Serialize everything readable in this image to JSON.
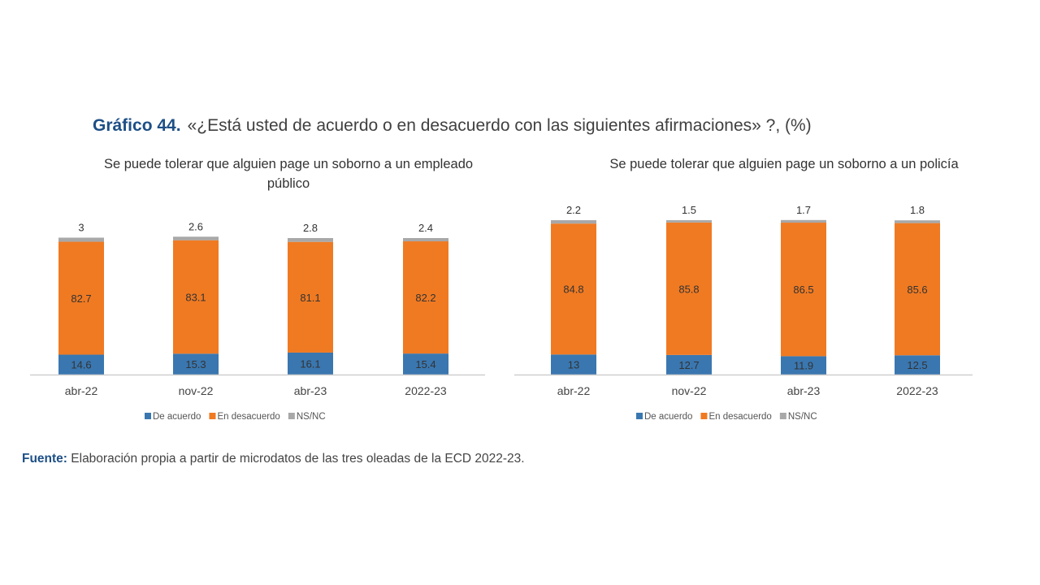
{
  "title": {
    "number": "Gráfico 44.",
    "text": "«¿Está usted de acuerdo o en desacuerdo con las siguientes afirmaciones» ?, (%)"
  },
  "source": {
    "label": "Fuente:",
    "text": "Elaboración propia a partir de microdatos de las tres oleadas de la ECD 2022-23."
  },
  "colors": {
    "de_acuerdo": "#3a77b0",
    "en_desacuerdo": "#f07a22",
    "nsnc": "#a8a8a8"
  },
  "chart_data": [
    {
      "type": "bar",
      "stacked": true,
      "title": "Se puede tolerar que alguien page un soborno a un empleado público",
      "categories": [
        "abr-22",
        "nov-22",
        "abr-23",
        "2022-23"
      ],
      "series": [
        {
          "name": "De acuerdo",
          "values": [
            14.6,
            15.3,
            16.1,
            15.4
          ],
          "labels": [
            "14.6",
            "15.3",
            "16.1",
            "15.4"
          ]
        },
        {
          "name": "En desacuerdo",
          "values": [
            82.7,
            83.1,
            81.1,
            82.2
          ],
          "labels": [
            "82.7",
            "83.1",
            "81.1",
            "82.2"
          ]
        },
        {
          "name": "NS/NC",
          "values": [
            3,
            2.6,
            2.8,
            2.4
          ],
          "labels": [
            "3",
            "2.6",
            "2.8",
            "2.4"
          ]
        }
      ],
      "ylim": [
        0,
        100
      ],
      "legend": "bottom"
    },
    {
      "type": "bar",
      "stacked": true,
      "title": "Se puede tolerar que alguien page un soborno a un policía",
      "categories": [
        "abr-22",
        "nov-22",
        "abr-23",
        "2022-23"
      ],
      "series": [
        {
          "name": "De acuerdo",
          "values": [
            13,
            12.7,
            11.9,
            12.5
          ],
          "labels": [
            "13",
            "12.7",
            "11.9",
            "12.5"
          ]
        },
        {
          "name": "En desacuerdo",
          "values": [
            84.8,
            85.8,
            86.5,
            85.6
          ],
          "labels": [
            "84.8",
            "85.8",
            "86.5",
            "85.6"
          ]
        },
        {
          "name": "NS/NC",
          "values": [
            2.2,
            1.5,
            1.7,
            1.8
          ],
          "labels": [
            "2.2",
            "1.5",
            "1.7",
            "1.8"
          ]
        }
      ],
      "ylim": [
        0,
        100
      ],
      "legend": "bottom"
    }
  ]
}
